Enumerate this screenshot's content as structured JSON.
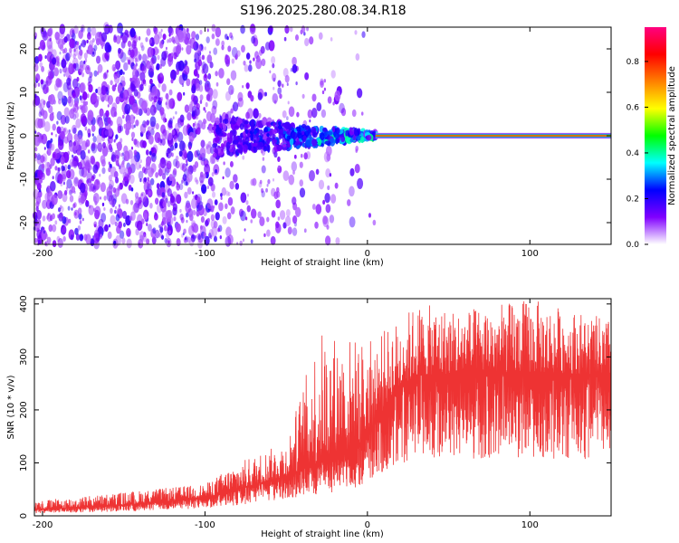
{
  "title": "S196.2025.280.08.34.R18",
  "chart_data": [
    {
      "type": "heatmap",
      "title": "S196.2025.280.08.34.R18",
      "xlabel": "Height of straight line (km)",
      "ylabel": "Frequency (Hz)",
      "xlim": [
        -205,
        150
      ],
      "ylim": [
        -25,
        25
      ],
      "xticks": [
        -200,
        -100,
        0,
        100
      ],
      "yticks": [
        -20,
        -10,
        0,
        10,
        20
      ],
      "colorbar": {
        "label": "Normalized spectral amplitude",
        "range": [
          0,
          0.95
        ],
        "ticks": [
          0.0,
          0.2,
          0.4,
          0.6,
          0.8
        ],
        "colormap": [
          "#ffffff",
          "#8000ff",
          "#0000ff",
          "#00ffff",
          "#00ff00",
          "#ffff00",
          "#ff8000",
          "#ff0000",
          "#ff0080"
        ]
      },
      "description_values": {
        "noise_region_km": [
          -205,
          -95
        ],
        "transition_region_km": [
          -95,
          5
        ],
        "steady_tone_region_km": [
          5,
          150
        ],
        "tone_frequency_hz": 0
      }
    },
    {
      "type": "line",
      "xlabel": "Height of straight line (km)",
      "ylabel": "SNR (10 * v/v)",
      "xlim": [
        -205,
        150
      ],
      "ylim": [
        0,
        410
      ],
      "xticks": [
        -200,
        -100,
        0,
        100
      ],
      "yticks": [
        0,
        100,
        200,
        300,
        400
      ],
      "series": [
        {
          "name": "SNR",
          "color": "#ee3333",
          "envelope_x": [
            -205,
            -150,
            -100,
            -80,
            -50,
            -30,
            -10,
            0,
            15,
            30,
            60,
            100,
            150
          ],
          "envelope_mean": [
            12,
            20,
            35,
            50,
            75,
            100,
            125,
            150,
            230,
            265,
            270,
            272,
            265
          ],
          "envelope_peak": [
            28,
            45,
            60,
            100,
            140,
            350,
            340,
            330,
            360,
            400,
            390,
            410,
            370
          ]
        }
      ]
    }
  ]
}
